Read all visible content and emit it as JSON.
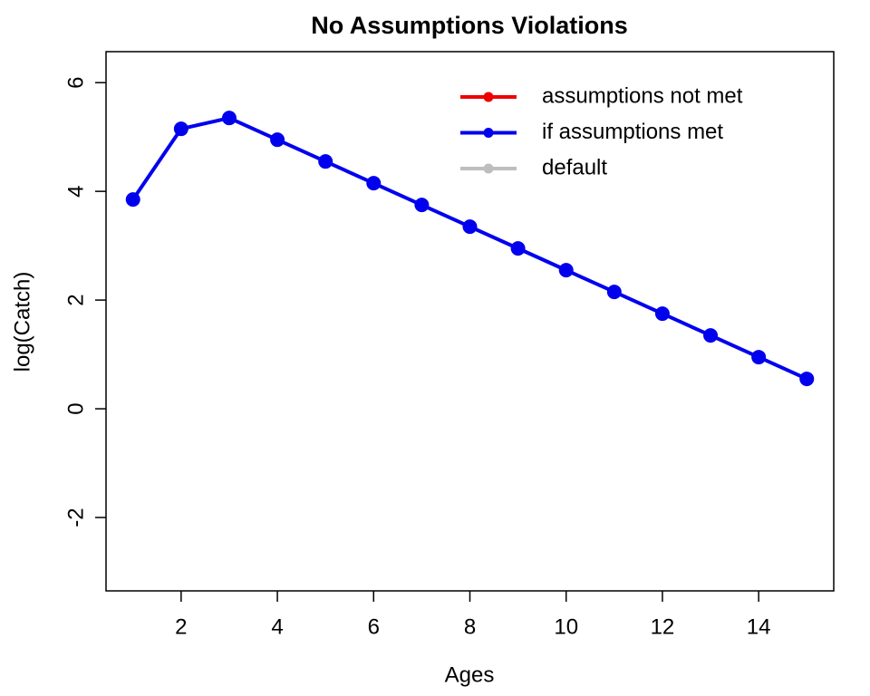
{
  "chart_data": {
    "type": "line",
    "title": "No Assumptions Violations",
    "x_label": "Ages",
    "y_label": "log(Catch)",
    "x": [
      1,
      2,
      3,
      4,
      5,
      6,
      7,
      8,
      9,
      10,
      11,
      12,
      13,
      14,
      15
    ],
    "series": [
      {
        "name": "assumptions not met",
        "color": "#ee0000",
        "values": [
          null,
          null,
          null,
          null,
          null,
          null,
          null,
          null,
          null,
          null,
          null,
          null,
          null,
          null,
          null
        ]
      },
      {
        "name": "if assumptions met",
        "color": "#0000ee",
        "values": [
          3.85,
          5.15,
          5.35,
          4.95,
          4.55,
          4.15,
          3.75,
          3.35,
          2.95,
          2.55,
          2.15,
          1.75,
          1.35,
          0.95,
          0.55
        ]
      },
      {
        "name": "default",
        "color": "#bebebe",
        "values": [
          null,
          null,
          null,
          null,
          null,
          null,
          null,
          null,
          null,
          null,
          null,
          null,
          null,
          null,
          null
        ]
      }
    ],
    "xlim": [
      0.44,
      15.56
    ],
    "xticks": [
      2,
      4,
      6,
      8,
      10,
      12,
      14
    ],
    "ylim": [
      -3.35,
      6.57
    ],
    "yticks": [
      -2,
      0,
      2,
      4,
      6
    ],
    "legend": "top-right"
  }
}
